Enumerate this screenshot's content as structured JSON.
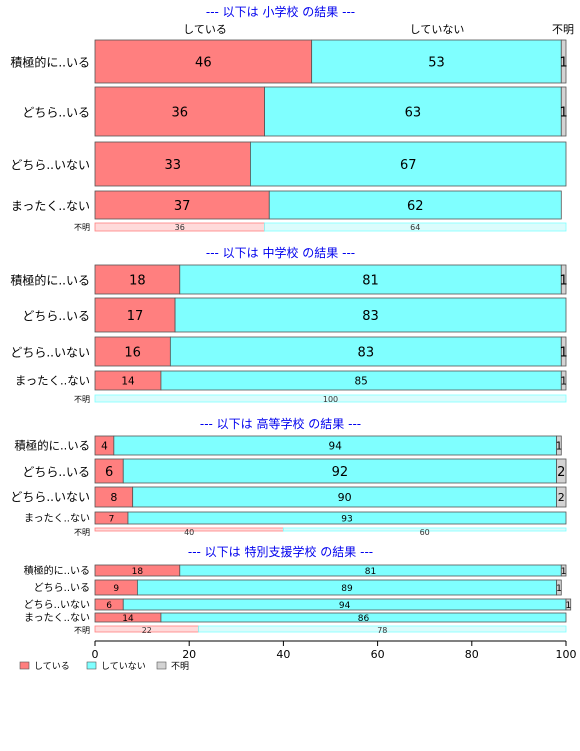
{
  "chart_data": {
    "type": "bar",
    "stacked": "100%",
    "orientation": "horizontal",
    "series_names": [
      "している",
      "していない",
      "不明"
    ],
    "colors": [
      "#ff7f7f",
      "#7fffff",
      "#d3d3d3"
    ],
    "top_labels": [
      "している",
      "していない",
      "不明"
    ],
    "categories": [
      "積極的に..いる",
      "どちら..いる",
      "どちら..いない",
      "まったく..ない"
    ],
    "unknown_label": "不明",
    "x_ticks": [
      0,
      20,
      40,
      60,
      80,
      100
    ],
    "xlim": [
      0,
      100
    ],
    "panels": [
      {
        "title": "--- 以下は 小学校 の結果 ---",
        "rows": [
          [
            46,
            53,
            1
          ],
          [
            36,
            63,
            1
          ],
          [
            33,
            67,
            0
          ],
          [
            37,
            62,
            0
          ]
        ],
        "unknown_row": [
          36,
          64,
          0
        ]
      },
      {
        "title": "--- 以下は 中学校 の結果 ---",
        "rows": [
          [
            18,
            81,
            1
          ],
          [
            17,
            83,
            0
          ],
          [
            16,
            83,
            1
          ],
          [
            14,
            85,
            1
          ]
        ],
        "unknown_row": [
          0,
          100,
          0
        ]
      },
      {
        "title": "--- 以下は 高等学校 の結果 ---",
        "rows": [
          [
            4,
            94,
            1
          ],
          [
            6,
            92,
            2
          ],
          [
            8,
            90,
            2
          ],
          [
            7,
            93,
            0
          ]
        ],
        "unknown_row": [
          40,
          60,
          0
        ]
      },
      {
        "title": "--- 以下は 特別支援学校 の結果 ---",
        "rows": [
          [
            18,
            81,
            1
          ],
          [
            9,
            89,
            1
          ],
          [
            6,
            94,
            1
          ],
          [
            14,
            86,
            0
          ]
        ],
        "unknown_row": [
          22,
          78,
          0
        ]
      }
    ],
    "legend": {
      "placement": "bottom-left",
      "entries": [
        "している",
        "していない",
        "不明"
      ]
    }
  }
}
